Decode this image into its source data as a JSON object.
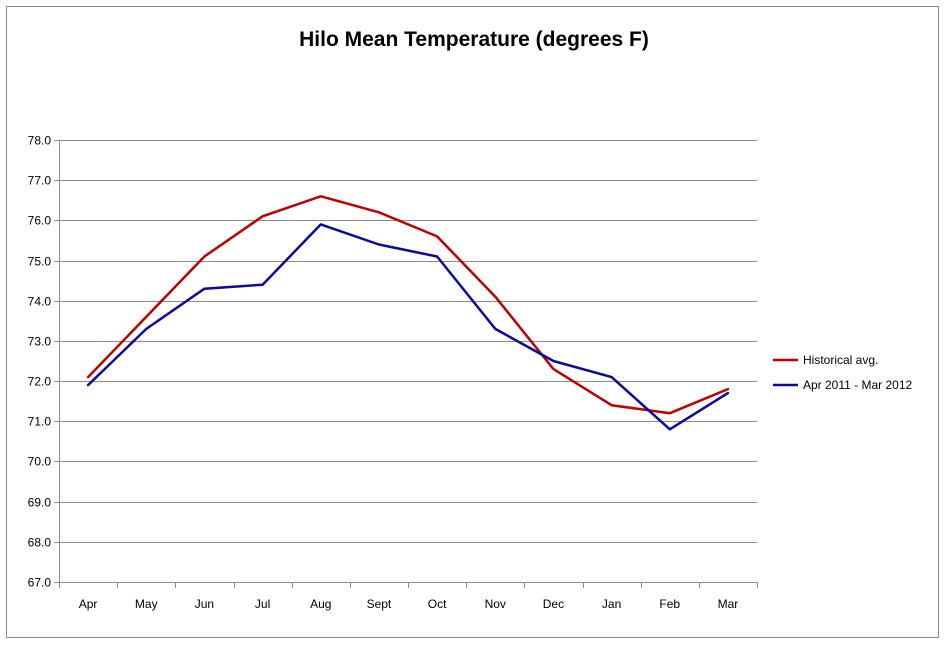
{
  "chart_data": {
    "type": "line",
    "title": "Hilo Mean Temperature (degrees F)",
    "xlabel": "",
    "ylabel": "",
    "categories": [
      "Apr",
      "May",
      "Jun",
      "Jul",
      "Aug",
      "Sept",
      "Oct",
      "Nov",
      "Dec",
      "Jan",
      "Feb",
      "Mar"
    ],
    "ylim": [
      67.0,
      78.0
    ],
    "yticks": [
      "67.0",
      "68.0",
      "69.0",
      "70.0",
      "71.0",
      "72.0",
      "73.0",
      "74.0",
      "75.0",
      "76.0",
      "77.0",
      "78.0"
    ],
    "grid": "horizontal",
    "legend_position": "right",
    "series": [
      {
        "name": "Historical avg.",
        "color": "#c00000",
        "values": [
          72.1,
          73.6,
          75.1,
          76.1,
          76.6,
          76.2,
          75.6,
          74.1,
          72.3,
          71.4,
          71.2,
          71.8
        ]
      },
      {
        "name": "Apr 2011 - Mar 2012",
        "color": "#0a0a9b",
        "values": [
          71.9,
          73.3,
          74.3,
          74.4,
          75.9,
          75.4,
          75.1,
          73.3,
          72.5,
          72.1,
          70.8,
          71.7
        ]
      }
    ]
  }
}
